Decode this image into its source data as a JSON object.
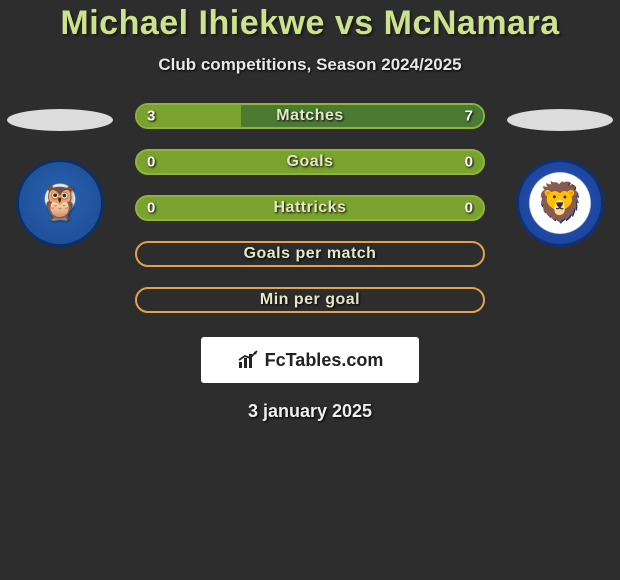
{
  "colors": {
    "page_bg": "#2e2d2d",
    "title": "#cce38c",
    "bar_green_border": "#8fb43a",
    "bar_green_fill": "#7aa22e",
    "bar_blue_fill": "#4b7a33",
    "bar_orange_border": "#e2a14c",
    "bar_label": "#e6e6c8"
  },
  "title": {
    "p1": "Michael Ihiekwe",
    "vs": "vs",
    "p2": "McNamara"
  },
  "subtitle": "Club competitions, Season 2024/2025",
  "crest_left": {
    "name": "sheffield-wednesday",
    "glyph": "🦉"
  },
  "crest_right": {
    "name": "millwall",
    "glyph": "🦁"
  },
  "bars": [
    {
      "key": "matches",
      "label": "Matches",
      "lv": "3",
      "rv": "7",
      "left_pct": 30,
      "right_pct": 70,
      "kind": "filled"
    },
    {
      "key": "goals",
      "label": "Goals",
      "lv": "0",
      "rv": "0",
      "left_pct": 0,
      "right_pct": 0,
      "kind": "filled"
    },
    {
      "key": "hattricks",
      "label": "Hattricks",
      "lv": "0",
      "rv": "0",
      "left_pct": 0,
      "right_pct": 0,
      "kind": "filled"
    },
    {
      "key": "gpm",
      "label": "Goals per match",
      "lv": "",
      "rv": "",
      "left_pct": 0,
      "right_pct": 0,
      "kind": "outline"
    },
    {
      "key": "mpg",
      "label": "Min per goal",
      "lv": "",
      "rv": "",
      "left_pct": 0,
      "right_pct": 0,
      "kind": "outline"
    }
  ],
  "footer_logo_text": "FcTables.com",
  "date": "3 january 2025"
}
